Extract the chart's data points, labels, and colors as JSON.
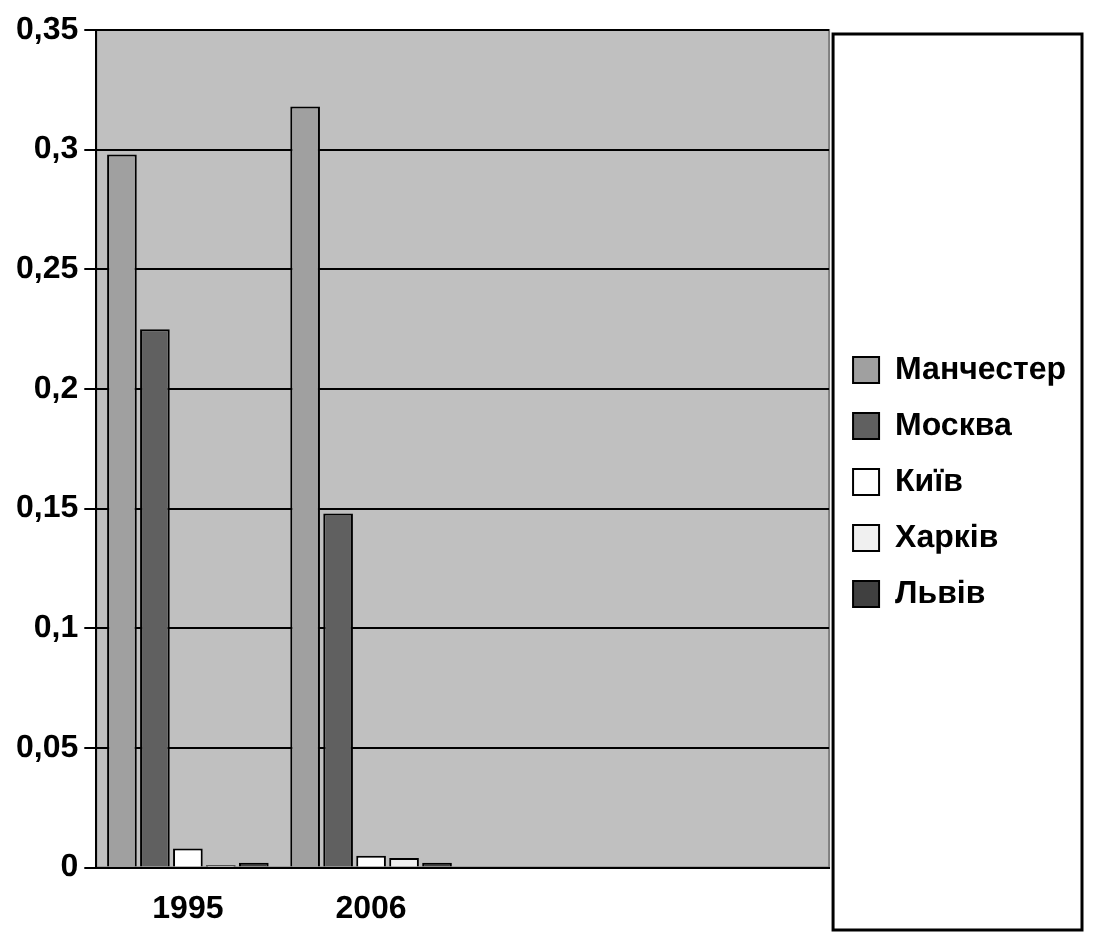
{
  "chart_data": {
    "type": "bar",
    "categories": [
      "1995",
      "2006",
      null,
      null
    ],
    "series": [
      {
        "name": "Манчестер",
        "color": "#a0a0a0",
        "values": [
          0.298,
          0.318,
          null,
          null
        ]
      },
      {
        "name": "Москва",
        "color": "#606060",
        "values": [
          0.225,
          0.148,
          null,
          null
        ]
      },
      {
        "name": "Київ",
        "color": "#ffffff",
        "values": [
          0.008,
          0.005,
          null,
          null
        ]
      },
      {
        "name": "Харків",
        "color": "#f0f0f0",
        "values": [
          0.001,
          0.004,
          null,
          null
        ]
      },
      {
        "name": "Львів",
        "color": "#404040",
        "values": [
          0.002,
          0.002,
          null,
          null
        ]
      }
    ],
    "ylim": [
      0,
      0.35
    ],
    "yticks": [
      {
        "value": 0,
        "label": "0"
      },
      {
        "value": 0.05,
        "label": "0,05"
      },
      {
        "value": 0.1,
        "label": "0,1"
      },
      {
        "value": 0.15,
        "label": "0,15"
      },
      {
        "value": 0.2,
        "label": "0,2"
      },
      {
        "value": 0.25,
        "label": "0,25"
      },
      {
        "value": 0.3,
        "label": "0,3"
      },
      {
        "value": 0.35,
        "label": "0,35"
      }
    ],
    "grid": "y",
    "legend": "right"
  }
}
